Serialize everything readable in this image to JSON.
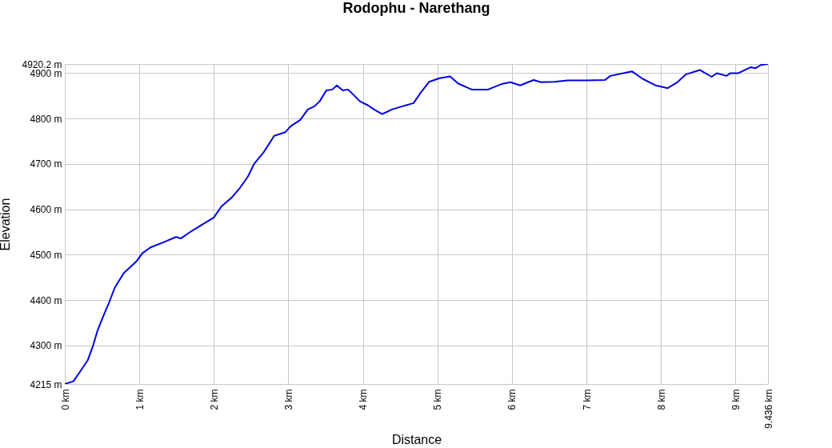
{
  "chart_data": {
    "type": "line",
    "title": "Rodophu - Narethang",
    "xlabel": "Distance",
    "ylabel": "Elevation",
    "x": [
      0,
      0.115,
      0.2,
      0.31,
      0.38,
      0.44,
      0.51,
      0.6,
      0.67,
      0.79,
      0.96,
      1.04,
      1.15,
      1.35,
      1.49,
      1.56,
      1.71,
      1.89,
      2.0,
      2.1,
      2.24,
      2.35,
      2.46,
      2.54,
      2.67,
      2.81,
      2.96,
      3.03,
      3.16,
      3.26,
      3.35,
      3.42,
      3.51,
      3.59,
      3.65,
      3.73,
      3.8,
      3.87,
      3.96,
      4.07,
      4.15,
      4.26,
      4.39,
      4.53,
      4.68,
      4.78,
      4.89,
      5.03,
      5.17,
      5.28,
      5.46,
      5.68,
      5.86,
      5.98,
      6.11,
      6.29,
      6.39,
      6.57,
      6.75,
      7.0,
      7.25,
      7.32,
      7.61,
      7.75,
      7.93,
      8.09,
      8.22,
      8.33,
      8.52,
      8.68,
      8.75,
      8.88,
      8.93,
      9.04,
      9.2,
      9.27,
      9.34,
      9.436
    ],
    "series": [
      {
        "color": "#0000e6",
        "values": [
          4215,
          4221,
          4241,
          4268,
          4300,
          4333,
          4362,
          4397,
          4427,
          4459,
          4485,
          4503,
          4516,
          4529,
          4539,
          4536,
          4553,
          4571,
          4582,
          4606,
          4626,
          4647,
          4673,
          4700,
          4726,
          4762,
          4770,
          4783,
          4797,
          4820,
          4827,
          4838,
          4862,
          4864,
          4873,
          4862,
          4864,
          4853,
          4838,
          4829,
          4820,
          4810,
          4820,
          4827,
          4834,
          4858,
          4881,
          4889,
          4893,
          4877,
          4864,
          4864,
          4876,
          4880,
          4873,
          4885,
          4880,
          4881,
          4884,
          4884,
          4885,
          4894,
          4904,
          4888,
          4873,
          4867,
          4880,
          4897,
          4907,
          4892,
          4900,
          4894,
          4900,
          4900,
          4913,
          4911,
          4918,
          4920
        ]
      }
    ],
    "xlim": [
      0,
      9.436
    ],
    "xticks": [
      {
        "value": 0,
        "label": "0 km"
      },
      {
        "value": 1,
        "label": "1 km"
      },
      {
        "value": 2,
        "label": "2 km"
      },
      {
        "value": 3,
        "label": "3 km"
      },
      {
        "value": 4,
        "label": "4 km"
      },
      {
        "value": 5,
        "label": "5 km"
      },
      {
        "value": 6,
        "label": "6 km"
      },
      {
        "value": 7,
        "label": "7 km"
      },
      {
        "value": 8,
        "label": "8 km"
      },
      {
        "value": 9,
        "label": "9 km"
      },
      {
        "value": 9.436,
        "label": "9.436 km"
      }
    ],
    "ylim": [
      4215,
      4920.2
    ],
    "yticks": [
      {
        "value": 4215,
        "label": "4215 m"
      },
      {
        "value": 4300,
        "label": "4300 m"
      },
      {
        "value": 4400,
        "label": "4400 m"
      },
      {
        "value": 4500,
        "label": "4500 m"
      },
      {
        "value": 4600,
        "label": "4600 m"
      },
      {
        "value": 4700,
        "label": "4700 m"
      },
      {
        "value": 4800,
        "label": "4800 m"
      },
      {
        "value": 4900,
        "label": "4900 m"
      },
      {
        "value": 4920.2,
        "label": "4920.2 m"
      }
    ],
    "grid": true,
    "marker": "none",
    "line_style": "solid"
  }
}
